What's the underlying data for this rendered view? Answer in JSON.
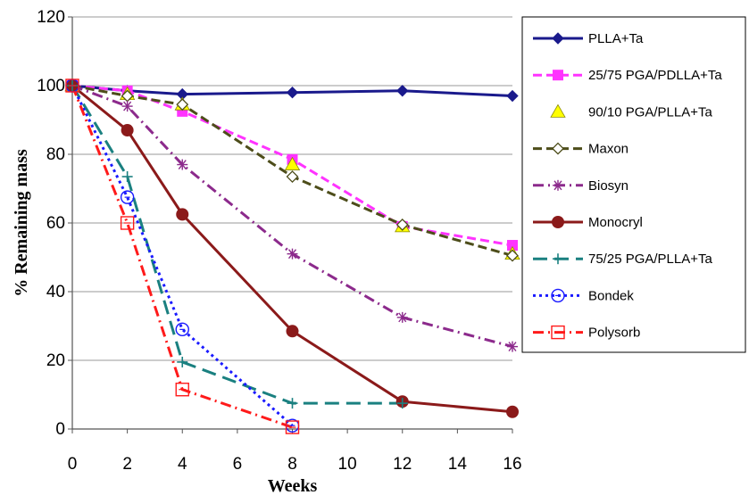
{
  "chart_data": {
    "type": "line",
    "title": "",
    "xlabel": "Weeks",
    "ylabel": "% Remaining mass",
    "xlim": [
      0,
      16
    ],
    "ylim": [
      0,
      120
    ],
    "xticks": [
      0,
      2,
      4,
      6,
      8,
      10,
      12,
      14,
      16
    ],
    "yticks": [
      0,
      20,
      40,
      60,
      80,
      100,
      120
    ],
    "grid": "horizontal",
    "legend_position": "right",
    "series": [
      {
        "name": "PLLA+Ta",
        "color": "#1a1a8c",
        "marker": "diamond-filled",
        "dash": "solid",
        "x": [
          0,
          2,
          4,
          8,
          12,
          16
        ],
        "y": [
          100,
          98.5,
          97.5,
          98,
          98.5,
          97
        ]
      },
      {
        "name": "25/75 PGA/PDLLA+Ta",
        "color": "#ff33ff",
        "marker": "square-filled",
        "dash": "dash",
        "x": [
          0,
          2,
          4,
          8,
          12,
          16
        ],
        "y": [
          100,
          98.5,
          92.5,
          78.5,
          59,
          53.5
        ]
      },
      {
        "name": "90/10 PGA/PLLA+Ta",
        "color": "#ffff00",
        "marker": "triangle-filled",
        "dash": "none",
        "x": [
          0,
          2,
          4,
          8,
          12,
          16
        ],
        "y": [
          100,
          97.5,
          94.5,
          77,
          59,
          51
        ]
      },
      {
        "name": "Maxon",
        "color": "#4d4d1a",
        "marker": "diamond-open",
        "dash": "dash",
        "x": [
          0,
          2,
          4,
          8,
          12,
          16
        ],
        "y": [
          100,
          97,
          94.5,
          73.5,
          59.5,
          50.5
        ]
      },
      {
        "name": "Biosyn",
        "color": "#8c2a8c",
        "marker": "asterisk",
        "dash": "dashdot",
        "x": [
          0,
          2,
          4,
          8,
          12,
          16
        ],
        "y": [
          100,
          94,
          77,
          51,
          32.5,
          24
        ]
      },
      {
        "name": "Monocryl",
        "color": "#8b1a1a",
        "marker": "circle-filled",
        "dash": "solid",
        "x": [
          0,
          2,
          4,
          8,
          12,
          16
        ],
        "y": [
          100,
          87,
          62.5,
          28.5,
          8,
          5
        ]
      },
      {
        "name": "75/25 PGA/PLLA+Ta",
        "color": "#1a8080",
        "marker": "plus",
        "dash": "longdash",
        "x": [
          0,
          2,
          4,
          8,
          12
        ],
        "y": [
          100,
          73.5,
          19.5,
          7.5,
          7.5
        ]
      },
      {
        "name": "Bondek",
        "color": "#1a1aff",
        "marker": "circle-open",
        "dash": "dot",
        "x": [
          0,
          2,
          4,
          8
        ],
        "y": [
          100,
          67.5,
          29,
          1
        ]
      },
      {
        "name": "Polysorb",
        "color": "#ff1a1a",
        "marker": "square-open",
        "dash": "dashdot",
        "x": [
          0,
          2,
          4,
          8
        ],
        "y": [
          100,
          60,
          11.5,
          0.5
        ]
      }
    ]
  }
}
